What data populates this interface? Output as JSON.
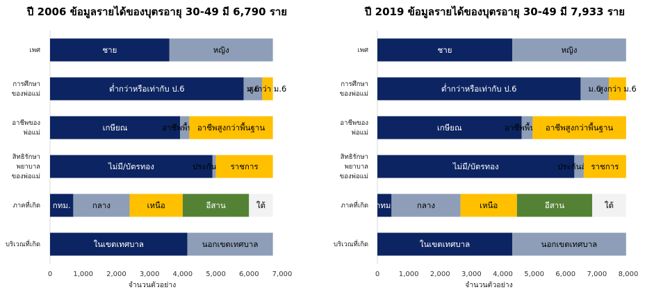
{
  "chart_data": [
    {
      "type": "bar",
      "orientation": "horizontal",
      "stacked": true,
      "title": "ปี 2006 ข้อมูลรายได้ของบุตรอายุ 30-49 มี 6,790 ราย",
      "xlabel": "จำนวนตัวอย่าง",
      "xlim": [
        0,
        7000
      ],
      "xticks": [
        "0",
        "1,000",
        "2,000",
        "3,000",
        "4,000",
        "5,000",
        "6,000",
        "7,000"
      ],
      "xtick_values": [
        0,
        1000,
        2000,
        3000,
        4000,
        5000,
        6000,
        7000
      ],
      "grid": false,
      "categories": [
        {
          "label": [
            "เพศ"
          ],
          "segments": [
            {
              "label": "ชาย",
              "value": 3600,
              "color": "#0c2461",
              "text_color": "#ffffff"
            },
            {
              "label": "หญิง",
              "value": 3120,
              "color": "#8e9eb8",
              "text_color": "#000000"
            }
          ]
        },
        {
          "label": [
            "การศึกษา",
            "ของพ่อแม่"
          ],
          "segments": [
            {
              "label": "ต่ำกว่าหรือเท่ากับ ป.6",
              "value": 5840,
              "color": "#0c2461",
              "text_color": "#ffffff"
            },
            {
              "label": "ม.6",
              "value": 560,
              "color": "#8e9eb8",
              "text_color": "#000000"
            },
            {
              "label": "สูงกว่า ม.6",
              "value": 320,
              "color": "#ffc000",
              "text_color": "#000000"
            }
          ]
        },
        {
          "label": [
            "อาชีพของ",
            "พ่อแม่"
          ],
          "segments": [
            {
              "label": "เกษียณ",
              "value": 3920,
              "color": "#0c2461",
              "text_color": "#ffffff"
            },
            {
              "label": "อาชีพพื้นฐาน",
              "value": 280,
              "color": "#8e9eb8",
              "text_color": "#000000"
            },
            {
              "label": "อาชีพสูงกว่าพื้นฐาน",
              "value": 2520,
              "color": "#ffc000",
              "text_color": "#000000"
            }
          ]
        },
        {
          "label": [
            "สิทธิรักษา",
            "พยาบาล",
            "ของพ่อแม่"
          ],
          "segments": [
            {
              "label": "ไม่มี/บัตรทอง",
              "value": 4900,
              "color": "#0c2461",
              "text_color": "#ffffff"
            },
            {
              "label": "ประกันสังคม",
              "value": 100,
              "color": "#8e9eb8",
              "text_color": "#000000"
            },
            {
              "label": "ราชการ",
              "value": 1720,
              "color": "#ffc000",
              "text_color": "#000000"
            }
          ]
        },
        {
          "label": [
            "ภาคที่เกิด"
          ],
          "segments": [
            {
              "label": "กทม.",
              "value": 700,
              "color": "#0c2461",
              "text_color": "#ffffff"
            },
            {
              "label": "กลาง",
              "value": 1700,
              "color": "#8e9eb8",
              "text_color": "#000000"
            },
            {
              "label": "เหนือ",
              "value": 1600,
              "color": "#ffc000",
              "text_color": "#000000"
            },
            {
              "label": "อีสาน",
              "value": 2000,
              "color": "#548235",
              "text_color": "#ffffff"
            },
            {
              "label": "ใต้",
              "value": 720,
              "color": "#f2f2f2",
              "text_color": "#000000"
            }
          ]
        },
        {
          "label": [
            "บริเวณที่เกิด"
          ],
          "segments": [
            {
              "label": "ในเขตเทศบาล",
              "value": 4140,
              "color": "#0c2461",
              "text_color": "#ffffff"
            },
            {
              "label": "นอกเขตเทศบาล",
              "value": 2580,
              "color": "#8e9eb8",
              "text_color": "#000000"
            }
          ]
        }
      ]
    },
    {
      "type": "bar",
      "orientation": "horizontal",
      "stacked": true,
      "title": "ปี 2019 ข้อมูลรายได้ของบุตรอายุ 30-49 มี 7,933 ราย",
      "xlabel": "จำนวนตัวอย่าง",
      "xlim": [
        0,
        8000
      ],
      "xticks": [
        "0",
        "1,000",
        "2,000",
        "3,000",
        "4,000",
        "5,000",
        "6,000",
        "7,000",
        "8,000"
      ],
      "xtick_values": [
        0,
        1000,
        2000,
        3000,
        4000,
        5000,
        6000,
        7000,
        8000
      ],
      "grid": false,
      "categories": [
        {
          "label": [
            "เพศ"
          ],
          "segments": [
            {
              "label": "ชาย",
              "value": 4300,
              "color": "#0c2461",
              "text_color": "#ffffff"
            },
            {
              "label": "หญิง",
              "value": 3630,
              "color": "#8e9eb8",
              "text_color": "#000000"
            }
          ]
        },
        {
          "label": [
            "การศึกษา",
            "ของพ่อแม่"
          ],
          "segments": [
            {
              "label": "ต่ำกว่าหรือเท่ากับ ป.6",
              "value": 6480,
              "color": "#0c2461",
              "text_color": "#ffffff"
            },
            {
              "label": "ม.6",
              "value": 900,
              "color": "#8e9eb8",
              "text_color": "#000000"
            },
            {
              "label": "สูงกว่า ม.6",
              "value": 550,
              "color": "#ffc000",
              "text_color": "#000000"
            }
          ]
        },
        {
          "label": [
            "อาชีพของ",
            "พ่อแม่"
          ],
          "segments": [
            {
              "label": "เกษียณ",
              "value": 4600,
              "color": "#0c2461",
              "text_color": "#ffffff"
            },
            {
              "label": "อาชีพพื้นฐาน",
              "value": 350,
              "color": "#8e9eb8",
              "text_color": "#000000"
            },
            {
              "label": "อาชีพสูงกว่าพื้นฐาน",
              "value": 2980,
              "color": "#ffc000",
              "text_color": "#000000"
            }
          ]
        },
        {
          "label": [
            "สิทธิรักษา",
            "พยาบาล",
            "ของพ่อแม่"
          ],
          "segments": [
            {
              "label": "ไม่มี/บัตรทอง",
              "value": 6280,
              "color": "#0c2461",
              "text_color": "#ffffff"
            },
            {
              "label": "ประกันสังคม",
              "value": 300,
              "color": "#8e9eb8",
              "text_color": "#000000"
            },
            {
              "label": "ราชการ",
              "value": 1350,
              "color": "#ffc000",
              "text_color": "#000000"
            }
          ]
        },
        {
          "label": [
            "ภาคที่เกิด"
          ],
          "segments": [
            {
              "label": "กทม.",
              "value": 450,
              "color": "#0c2461",
              "text_color": "#ffffff"
            },
            {
              "label": "กลาง",
              "value": 2200,
              "color": "#8e9eb8",
              "text_color": "#000000"
            },
            {
              "label": "เหนือ",
              "value": 1800,
              "color": "#ffc000",
              "text_color": "#000000"
            },
            {
              "label": "อีสาน",
              "value": 2400,
              "color": "#548235",
              "text_color": "#ffffff"
            },
            {
              "label": "ใต้",
              "value": 1080,
              "color": "#f2f2f2",
              "text_color": "#000000"
            }
          ]
        },
        {
          "label": [
            "บริเวณที่เกิด"
          ],
          "segments": [
            {
              "label": "ในเขตเทศบาล",
              "value": 4300,
              "color": "#0c2461",
              "text_color": "#ffffff"
            },
            {
              "label": "นอกเขตเทศบาล",
              "value": 3630,
              "color": "#8e9eb8",
              "text_color": "#000000"
            }
          ]
        }
      ]
    }
  ]
}
